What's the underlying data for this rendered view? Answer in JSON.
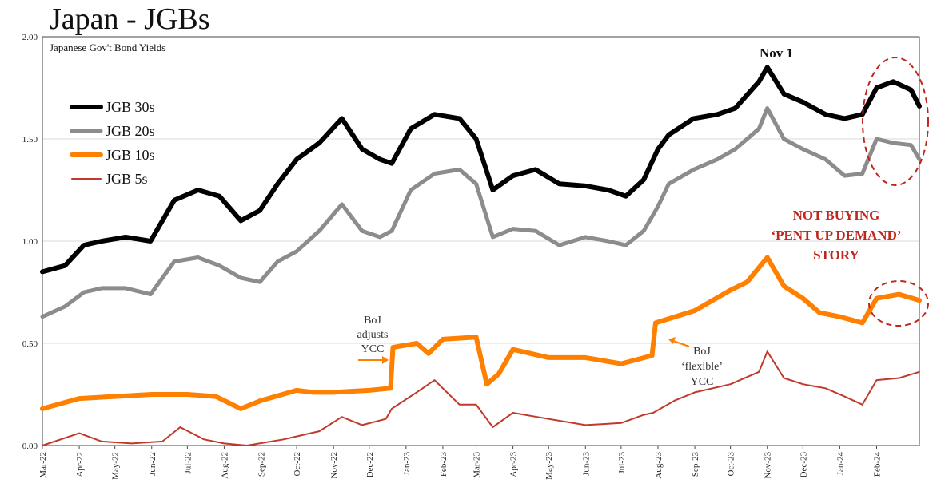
{
  "title": "Japan - JGBs",
  "chart_data": {
    "type": "line",
    "title": "Japanese Gov't Bond Yields",
    "xlabel": "",
    "ylabel": "",
    "ylim": [
      0,
      2.0
    ],
    "yticks": [
      "0.00",
      "0.50",
      "1.00",
      "1.50",
      "2.00"
    ],
    "xlim": [
      "2022-03-01",
      "2024-03-08"
    ],
    "x_tick_labels": [
      "Mar-22",
      "Apr-22",
      "May-22",
      "Jun-22",
      "Jul-22",
      "Aug-22",
      "Sep-22",
      "Oct-22",
      "Nov-22",
      "Dec-22",
      "Jan-23",
      "Feb-23",
      "Mar-23",
      "Apr-23",
      "May-23",
      "Jun-23",
      "Jul-23",
      "Aug-23",
      "Sep-23",
      "Oct-23",
      "Nov-23",
      "Dec-23",
      "Jan-24",
      "Feb-24"
    ],
    "grid": "horizontal",
    "legend_position": "top-left",
    "series": [
      {
        "name": "JGB 30s",
        "color": "#000000",
        "x": [
          "2022-03-01",
          "2022-03-20",
          "2022-04-05",
          "2022-04-20",
          "2022-05-10",
          "2022-05-31",
          "2022-06-20",
          "2022-07-10",
          "2022-07-28",
          "2022-08-15",
          "2022-08-31",
          "2022-09-15",
          "2022-10-01",
          "2022-10-20",
          "2022-11-08",
          "2022-11-25",
          "2022-12-10",
          "2022-12-20",
          "2023-01-05",
          "2023-01-25",
          "2023-02-15",
          "2023-03-01",
          "2023-03-15",
          "2023-04-01",
          "2023-04-20",
          "2023-05-10",
          "2023-06-01",
          "2023-06-20",
          "2023-07-05",
          "2023-07-20",
          "2023-08-01",
          "2023-08-10",
          "2023-08-31",
          "2023-09-20",
          "2023-10-05",
          "2023-10-25",
          "2023-11-01",
          "2023-11-15",
          "2023-12-01",
          "2023-12-20",
          "2024-01-05",
          "2024-01-20",
          "2024-02-01",
          "2024-02-15",
          "2024-03-01",
          "2024-03-08"
        ],
        "y": [
          0.85,
          0.88,
          0.98,
          1.0,
          1.02,
          1.0,
          1.2,
          1.25,
          1.22,
          1.1,
          1.15,
          1.28,
          1.4,
          1.48,
          1.6,
          1.45,
          1.4,
          1.38,
          1.55,
          1.62,
          1.6,
          1.5,
          1.25,
          1.32,
          1.35,
          1.28,
          1.27,
          1.25,
          1.22,
          1.3,
          1.45,
          1.52,
          1.6,
          1.62,
          1.65,
          1.78,
          1.85,
          1.72,
          1.68,
          1.62,
          1.6,
          1.62,
          1.75,
          1.78,
          1.74,
          1.66
        ]
      },
      {
        "name": "JGB 20s",
        "color": "#8c8c8c",
        "x": [
          "2022-03-01",
          "2022-03-20",
          "2022-04-05",
          "2022-04-20",
          "2022-05-10",
          "2022-05-31",
          "2022-06-20",
          "2022-07-10",
          "2022-07-28",
          "2022-08-15",
          "2022-08-31",
          "2022-09-15",
          "2022-10-01",
          "2022-10-20",
          "2022-11-08",
          "2022-11-25",
          "2022-12-10",
          "2022-12-20",
          "2023-01-05",
          "2023-01-25",
          "2023-02-15",
          "2023-03-01",
          "2023-03-15",
          "2023-04-01",
          "2023-04-20",
          "2023-05-10",
          "2023-06-01",
          "2023-06-20",
          "2023-07-05",
          "2023-07-20",
          "2023-08-01",
          "2023-08-10",
          "2023-08-31",
          "2023-09-20",
          "2023-10-05",
          "2023-10-25",
          "2023-11-01",
          "2023-11-15",
          "2023-12-01",
          "2023-12-20",
          "2024-01-05",
          "2024-01-20",
          "2024-02-01",
          "2024-02-15",
          "2024-03-01",
          "2024-03-08"
        ],
        "y": [
          0.63,
          0.68,
          0.75,
          0.77,
          0.77,
          0.74,
          0.9,
          0.92,
          0.88,
          0.82,
          0.8,
          0.9,
          0.95,
          1.05,
          1.18,
          1.05,
          1.02,
          1.05,
          1.25,
          1.33,
          1.35,
          1.28,
          1.02,
          1.06,
          1.05,
          0.98,
          1.02,
          1.0,
          0.98,
          1.05,
          1.17,
          1.28,
          1.35,
          1.4,
          1.45,
          1.55,
          1.65,
          1.5,
          1.45,
          1.4,
          1.32,
          1.33,
          1.5,
          1.48,
          1.47,
          1.4
        ]
      },
      {
        "name": "JGB 10s",
        "color": "#ff7f00",
        "x": [
          "2022-03-01",
          "2022-04-01",
          "2022-05-01",
          "2022-06-01",
          "2022-07-01",
          "2022-07-25",
          "2022-08-15",
          "2022-09-01",
          "2022-10-01",
          "2022-10-15",
          "2022-11-01",
          "2022-12-01",
          "2022-12-19",
          "2022-12-21",
          "2023-01-10",
          "2023-01-20",
          "2023-02-01",
          "2023-03-01",
          "2023-03-10",
          "2023-03-20",
          "2023-04-01",
          "2023-05-01",
          "2023-06-01",
          "2023-07-01",
          "2023-07-27",
          "2023-07-30",
          "2023-08-10",
          "2023-09-01",
          "2023-10-01",
          "2023-10-15",
          "2023-11-01",
          "2023-11-15",
          "2023-12-01",
          "2023-12-15",
          "2024-01-01",
          "2024-01-20",
          "2024-02-01",
          "2024-02-20",
          "2024-03-08"
        ],
        "y": [
          0.18,
          0.23,
          0.24,
          0.25,
          0.25,
          0.24,
          0.18,
          0.22,
          0.27,
          0.26,
          0.26,
          0.27,
          0.28,
          0.48,
          0.5,
          0.45,
          0.52,
          0.53,
          0.3,
          0.35,
          0.47,
          0.43,
          0.43,
          0.4,
          0.44,
          0.6,
          0.62,
          0.66,
          0.76,
          0.8,
          0.92,
          0.78,
          0.72,
          0.65,
          0.63,
          0.6,
          0.72,
          0.74,
          0.71
        ]
      },
      {
        "name": "JGB 5s",
        "color": "#c0392b",
        "x": [
          "2022-03-01",
          "2022-04-01",
          "2022-04-20",
          "2022-05-15",
          "2022-06-10",
          "2022-06-25",
          "2022-07-15",
          "2022-08-01",
          "2022-08-20",
          "2022-09-20",
          "2022-10-20",
          "2022-11-08",
          "2022-11-25",
          "2022-12-15",
          "2022-12-20",
          "2023-01-10",
          "2023-01-25",
          "2023-02-15",
          "2023-03-01",
          "2023-03-15",
          "2023-04-01",
          "2023-05-01",
          "2023-06-01",
          "2023-07-01",
          "2023-07-20",
          "2023-07-28",
          "2023-08-15",
          "2023-09-01",
          "2023-10-01",
          "2023-10-25",
          "2023-11-01",
          "2023-11-15",
          "2023-12-01",
          "2023-12-20",
          "2024-01-05",
          "2024-01-20",
          "2024-02-01",
          "2024-02-20",
          "2024-03-08"
        ],
        "y": [
          0.0,
          0.06,
          0.02,
          0.01,
          0.02,
          0.09,
          0.03,
          0.01,
          0.0,
          0.03,
          0.07,
          0.14,
          0.1,
          0.13,
          0.18,
          0.26,
          0.32,
          0.2,
          0.2,
          0.09,
          0.16,
          0.13,
          0.1,
          0.11,
          0.15,
          0.16,
          0.22,
          0.26,
          0.3,
          0.36,
          0.46,
          0.33,
          0.3,
          0.28,
          0.24,
          0.2,
          0.32,
          0.33,
          0.36
        ]
      }
    ],
    "annotations": {
      "peak_label": "Nov 1",
      "boj_adjusts": [
        "BoJ",
        "adjusts",
        "YCC"
      ],
      "boj_flexible": [
        "BoJ",
        "‘flexible’",
        "YCC"
      ],
      "not_buying": [
        "NOT BUYING",
        "‘PENT UP DEMAND’",
        "STORY"
      ]
    }
  }
}
